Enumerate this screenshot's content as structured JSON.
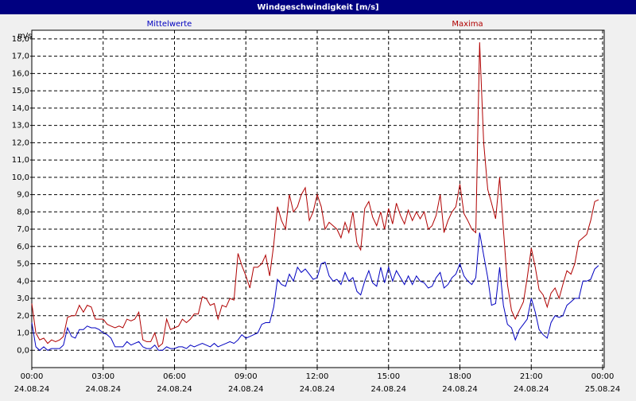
{
  "chart_data": {
    "type": "line",
    "title": "Windgeschwindigkeit [m/s]",
    "y_unit": "m/s",
    "xlim": [
      0,
      24
    ],
    "ylim": [
      -1,
      18.5
    ],
    "grid": true,
    "xticks": [
      {
        "value": 0,
        "label": "00:00",
        "date": "24.08.24"
      },
      {
        "value": 3,
        "label": "03:00",
        "date": "24.08.24"
      },
      {
        "value": 6,
        "label": "06:00",
        "date": "24.08.24"
      },
      {
        "value": 9,
        "label": "09:00",
        "date": "24.08.24"
      },
      {
        "value": 12,
        "label": "12:00",
        "date": "24.08.24"
      },
      {
        "value": 15,
        "label": "15:00",
        "date": "24.08.24"
      },
      {
        "value": 18,
        "label": "18:00",
        "date": "24.08.24"
      },
      {
        "value": 21,
        "label": "21:00",
        "date": "24.08.24"
      },
      {
        "value": 24,
        "label": "00:00",
        "date": "25.08.24"
      }
    ],
    "yticks": [
      {
        "value": 0,
        "label": "0,0"
      },
      {
        "value": 1,
        "label": "1,0"
      },
      {
        "value": 2,
        "label": "2,0"
      },
      {
        "value": 3,
        "label": "3,0"
      },
      {
        "value": 4,
        "label": "4,0"
      },
      {
        "value": 5,
        "label": "5,0"
      },
      {
        "value": 6,
        "label": "6,0"
      },
      {
        "value": 7,
        "label": "7,0"
      },
      {
        "value": 8,
        "label": "8,0"
      },
      {
        "value": 9,
        "label": "9,0"
      },
      {
        "value": 10,
        "label": "10,0"
      },
      {
        "value": 11,
        "label": "11,0"
      },
      {
        "value": 12,
        "label": "12,0"
      },
      {
        "value": 13,
        "label": "13,0"
      },
      {
        "value": 14,
        "label": "14,0"
      },
      {
        "value": 15,
        "label": "15,0"
      },
      {
        "value": 16,
        "label": "16,0"
      },
      {
        "value": 17,
        "label": "17,0"
      },
      {
        "value": 18,
        "label": "18,0"
      }
    ],
    "x": [
      0,
      0.17,
      0.33,
      0.5,
      0.67,
      0.83,
      1,
      1.17,
      1.33,
      1.5,
      1.67,
      1.83,
      2,
      2.17,
      2.33,
      2.5,
      2.67,
      2.83,
      3,
      3.17,
      3.33,
      3.5,
      3.67,
      3.83,
      4,
      4.17,
      4.33,
      4.5,
      4.67,
      4.83,
      5,
      5.17,
      5.33,
      5.5,
      5.67,
      5.83,
      6,
      6.17,
      6.33,
      6.5,
      6.67,
      6.83,
      7,
      7.17,
      7.33,
      7.5,
      7.67,
      7.83,
      8,
      8.17,
      8.33,
      8.5,
      8.67,
      8.83,
      9,
      9.17,
      9.33,
      9.5,
      9.67,
      9.83,
      10,
      10.17,
      10.33,
      10.5,
      10.67,
      10.83,
      11,
      11.17,
      11.33,
      11.5,
      11.67,
      11.83,
      12,
      12.17,
      12.33,
      12.5,
      12.67,
      12.83,
      13,
      13.17,
      13.33,
      13.5,
      13.67,
      13.83,
      14,
      14.17,
      14.33,
      14.5,
      14.67,
      14.83,
      15,
      15.17,
      15.33,
      15.5,
      15.67,
      15.83,
      16,
      16.17,
      16.33,
      16.5,
      16.67,
      16.83,
      17,
      17.17,
      17.33,
      17.5,
      17.67,
      17.83,
      18,
      18.17,
      18.33,
      18.5,
      18.67,
      18.83,
      19,
      19.17,
      19.33,
      19.5,
      19.67,
      19.83,
      20,
      20.17,
      20.33,
      20.5,
      20.67,
      20.83,
      21,
      21.17,
      21.33,
      21.5,
      21.67,
      21.83,
      22,
      22.17,
      22.33,
      22.5,
      22.67,
      22.83,
      23,
      23.17,
      23.33,
      23.5,
      23.67,
      23.83
    ],
    "series": [
      {
        "name": "Mittelwerte",
        "color": "#0000c0",
        "values": [
          1.6,
          0.2,
          0.0,
          0.2,
          0.0,
          0.1,
          0.1,
          0.1,
          0.3,
          1.3,
          0.8,
          0.7,
          1.2,
          1.2,
          1.4,
          1.3,
          1.3,
          1.2,
          1.0,
          0.9,
          0.7,
          0.2,
          0.2,
          0.2,
          0.5,
          0.3,
          0.4,
          0.5,
          0.2,
          0.1,
          0.1,
          0.3,
          0.0,
          0.0,
          0.2,
          0.1,
          0.1,
          0.2,
          0.2,
          0.1,
          0.3,
          0.2,
          0.3,
          0.4,
          0.3,
          0.2,
          0.4,
          0.2,
          0.3,
          0.4,
          0.5,
          0.4,
          0.6,
          0.9,
          0.7,
          0.8,
          0.9,
          1.0,
          1.5,
          1.6,
          1.6,
          2.5,
          4.1,
          3.8,
          3.7,
          4.4,
          4.0,
          4.8,
          4.5,
          4.7,
          4.4,
          4.1,
          4.2,
          5.0,
          5.1,
          4.3,
          4.0,
          4.1,
          3.8,
          4.5,
          4.0,
          4.2,
          3.4,
          3.2,
          4.0,
          4.6,
          3.9,
          3.7,
          4.8,
          3.9,
          4.8,
          4.0,
          4.6,
          4.2,
          3.8,
          4.3,
          3.8,
          4.3,
          4.0,
          3.9,
          3.6,
          3.7,
          4.2,
          4.5,
          3.6,
          3.8,
          4.2,
          4.4,
          5.0,
          4.3,
          4.0,
          3.8,
          4.2,
          6.8,
          5.5,
          4.2,
          2.6,
          2.7,
          4.8,
          2.6,
          1.5,
          1.3,
          0.6,
          1.2,
          1.5,
          1.8,
          3.0,
          2.2,
          1.2,
          0.9,
          0.7,
          1.6,
          2.0,
          1.9,
          2.0,
          2.6,
          2.8,
          3.0,
          3.0,
          4.0,
          4.0,
          4.1,
          4.7,
          4.9
        ]
      },
      {
        "name": "Maxima",
        "color": "#b00000",
        "values": [
          2.7,
          1.0,
          0.6,
          0.7,
          0.4,
          0.6,
          0.5,
          0.6,
          0.8,
          1.9,
          2.0,
          2.0,
          2.6,
          2.2,
          2.6,
          2.5,
          1.8,
          1.8,
          1.8,
          1.5,
          1.4,
          1.3,
          1.4,
          1.3,
          1.8,
          1.7,
          1.8,
          2.2,
          0.6,
          0.5,
          0.5,
          1.0,
          0.2,
          0.4,
          1.8,
          1.2,
          1.3,
          1.4,
          1.8,
          1.6,
          1.8,
          2.1,
          2.1,
          3.1,
          3.0,
          2.6,
          2.7,
          1.8,
          2.6,
          2.5,
          3.0,
          2.9,
          5.6,
          4.9,
          4.3,
          3.6,
          4.8,
          4.8,
          5.0,
          5.5,
          4.3,
          6.1,
          8.3,
          7.5,
          7.0,
          9.0,
          8.0,
          8.3,
          9.0,
          9.4,
          7.5,
          8.0,
          9.0,
          8.3,
          7.0,
          7.4,
          7.2,
          7.0,
          6.5,
          7.4,
          6.8,
          8.0,
          6.2,
          5.8,
          8.2,
          8.6,
          7.7,
          7.2,
          8.0,
          7.0,
          8.2,
          7.3,
          8.5,
          7.8,
          7.3,
          8.1,
          7.5,
          8.0,
          7.6,
          8.0,
          7.0,
          7.2,
          7.8,
          9.0,
          6.8,
          7.5,
          8.0,
          8.3,
          9.6,
          7.9,
          7.5,
          7.0,
          6.8,
          17.8,
          12.0,
          9.3,
          8.5,
          7.6,
          10.0,
          7.0,
          3.8,
          2.3,
          1.8,
          2.3,
          2.8,
          4.2,
          5.9,
          4.8,
          3.5,
          3.2,
          2.5,
          3.3,
          3.6,
          3.0,
          3.8,
          4.6,
          4.4,
          5.0,
          6.3,
          6.5,
          6.7,
          7.5,
          8.6,
          8.7
        ]
      }
    ]
  }
}
